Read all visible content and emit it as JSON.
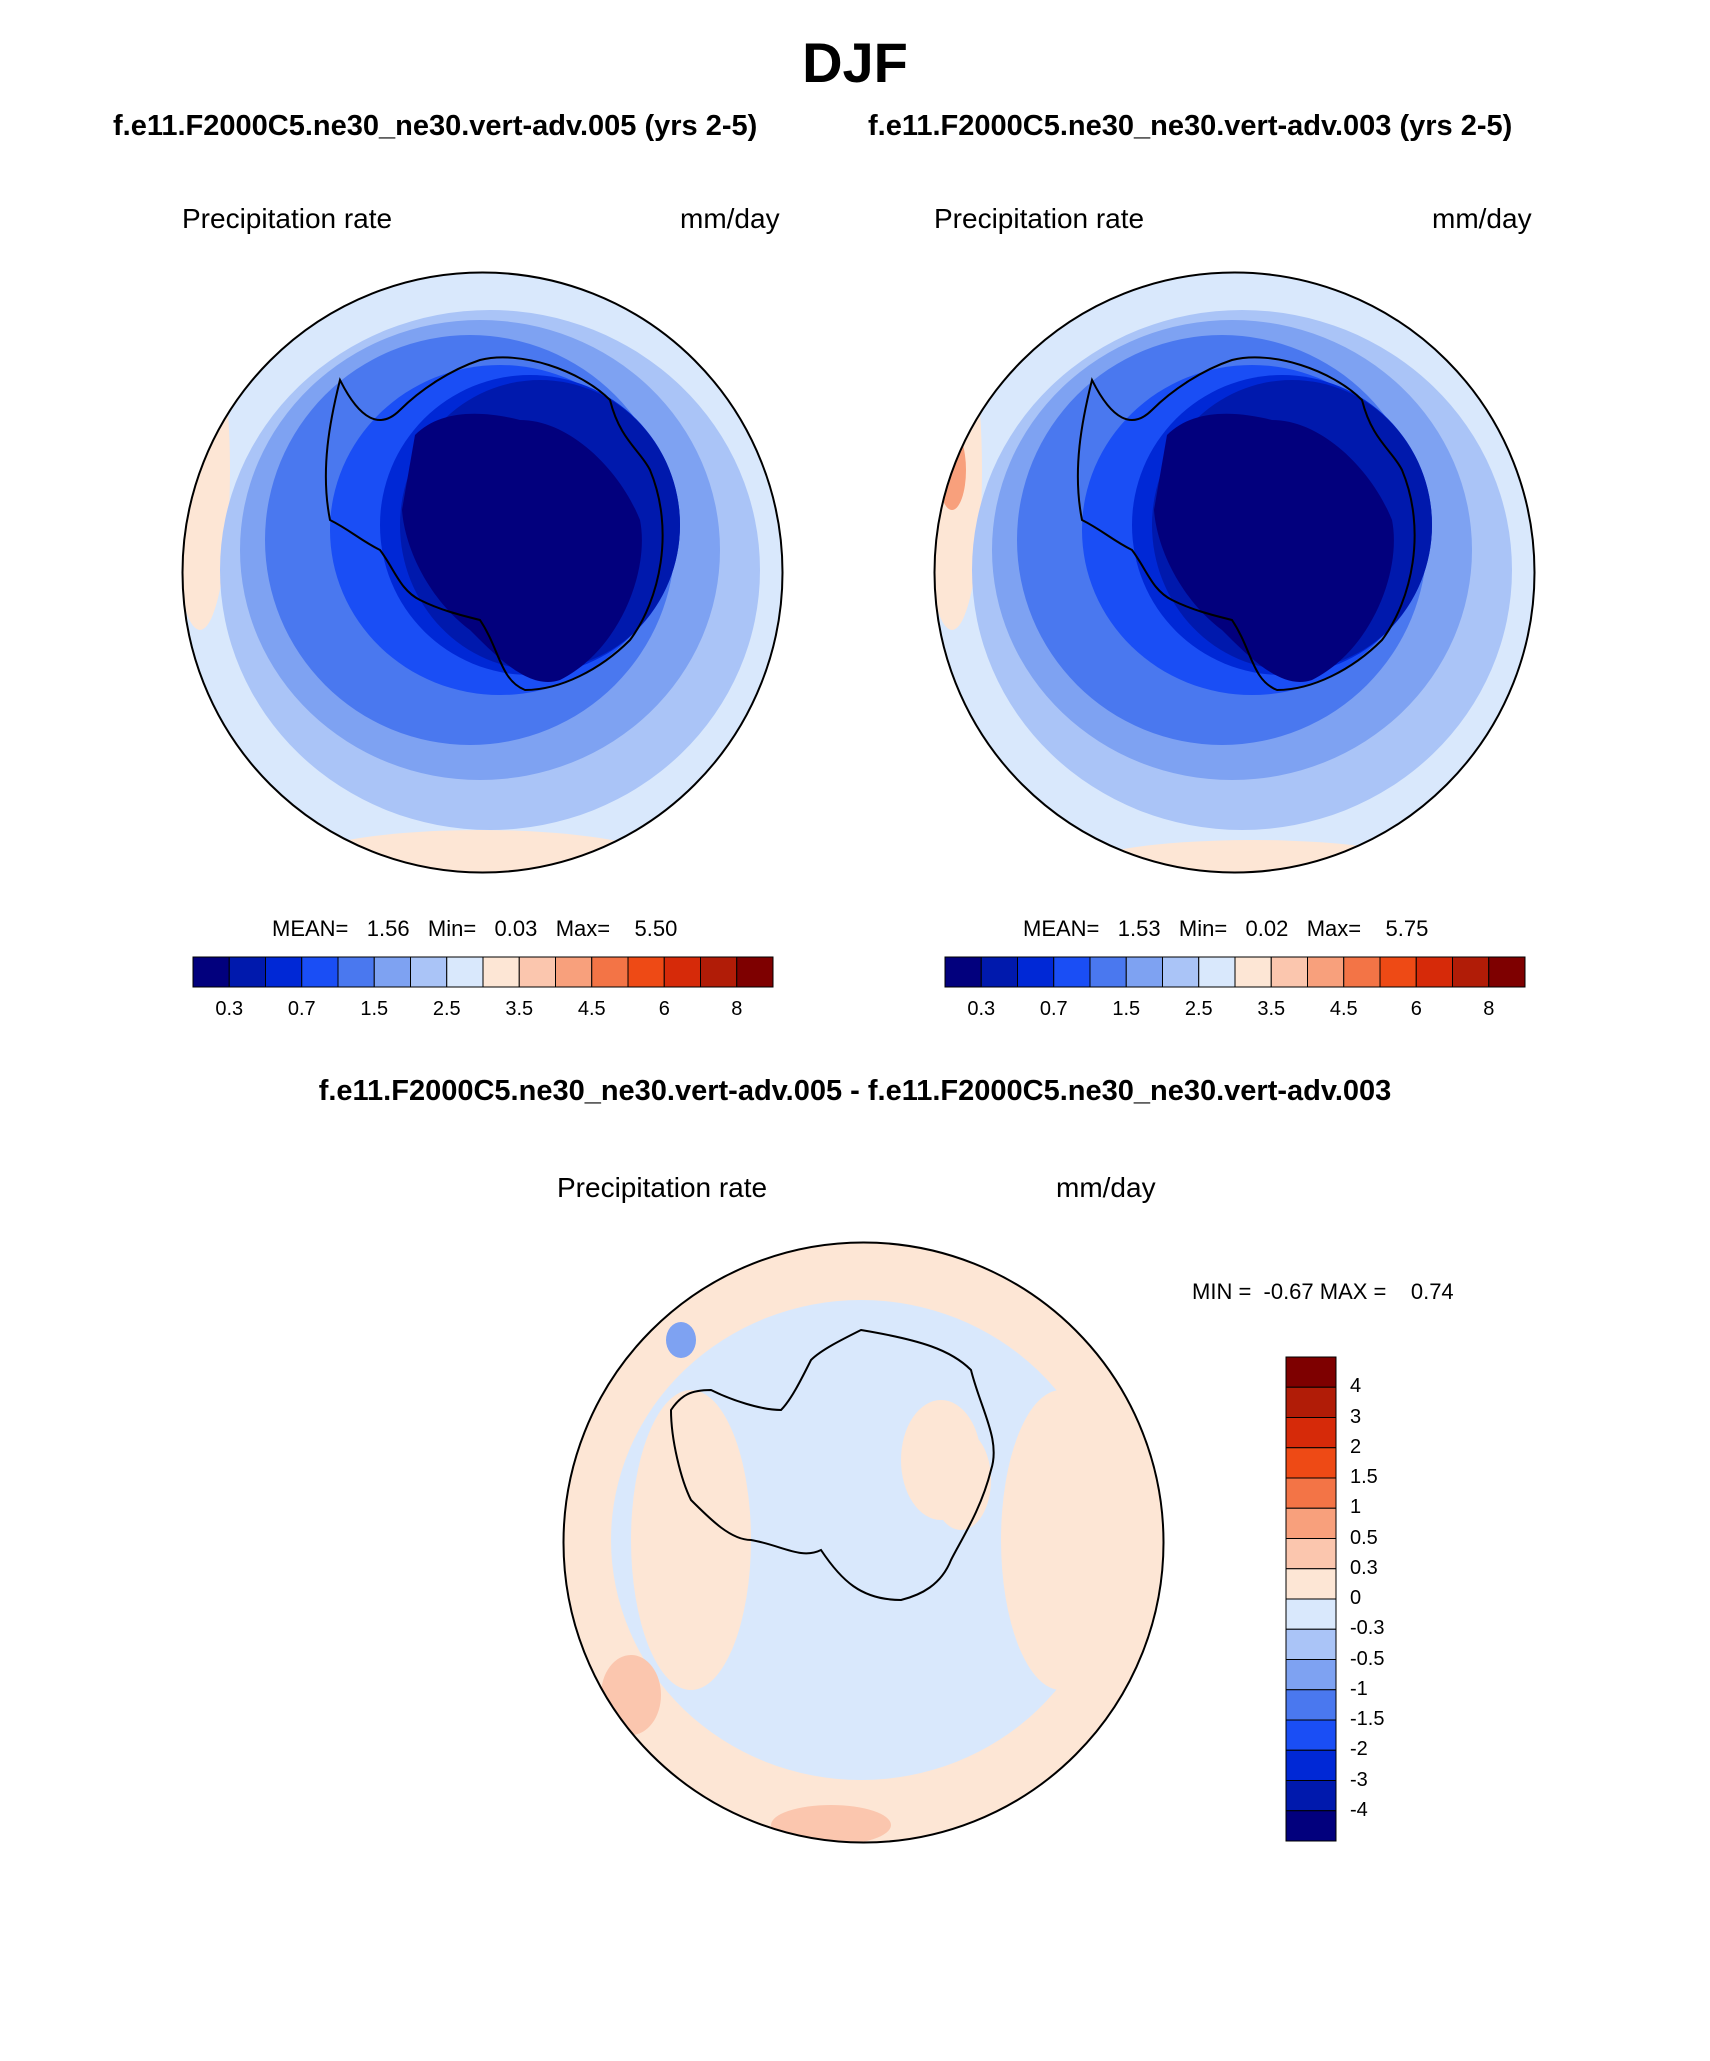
{
  "title": "DJF",
  "panels": [
    {
      "case_title": "f.e11.F2000C5.ne30_ne30.vert-adv.005 (yrs 2-5)",
      "variable": "Precipitation rate",
      "units": "mm/day",
      "stats": "MEAN=   1.56   Min=   0.03   Max=    5.50"
    },
    {
      "case_title": "f.e11.F2000C5.ne30_ne30.vert-adv.003 (yrs 2-5)",
      "variable": "Precipitation rate",
      "units": "mm/day",
      "stats": "MEAN=   1.53   Min=   0.02   Max=    5.75"
    }
  ],
  "colorbar": {
    "colors": [
      "#02007d",
      "#0019ad",
      "#0028d6",
      "#1a4ef5",
      "#4a78ef",
      "#7ea2f2",
      "#aac4f7",
      "#d9e8fc",
      "#fde6d5",
      "#fbc6ae",
      "#f8a07c",
      "#f37446",
      "#ee4a15",
      "#d62a09",
      "#b11c07",
      "#7e0000"
    ],
    "tick_labels": [
      "0.3",
      "0.7",
      "1.5",
      "2.5",
      "3.5",
      "4.5",
      "6",
      "8"
    ]
  },
  "difference": {
    "title": "f.e11.F2000C5.ne30_ne30.vert-adv.005 - f.e11.F2000C5.ne30_ne30.vert-adv.003",
    "variable": "Precipitation rate",
    "units": "mm/day",
    "stats": "MIN =  -0.67 MAX =    0.74",
    "colorbar": {
      "colors_top_to_bottom": [
        "#7e0000",
        "#b11c07",
        "#d62a09",
        "#ee4a15",
        "#f37446",
        "#f8a07c",
        "#fbc6ae",
        "#fde6d5",
        "#d9e8fc",
        "#aac4f7",
        "#7ea2f2",
        "#4a78ef",
        "#1a4ef5",
        "#0028d6",
        "#0019ad",
        "#02007d"
      ],
      "tick_labels": [
        "4",
        "3",
        "2",
        "1.5",
        "1",
        "0.5",
        "0.3",
        "0",
        "-0.3",
        "-0.5",
        "-1",
        "-1.5",
        "-2",
        "-3",
        "-4"
      ]
    }
  }
}
